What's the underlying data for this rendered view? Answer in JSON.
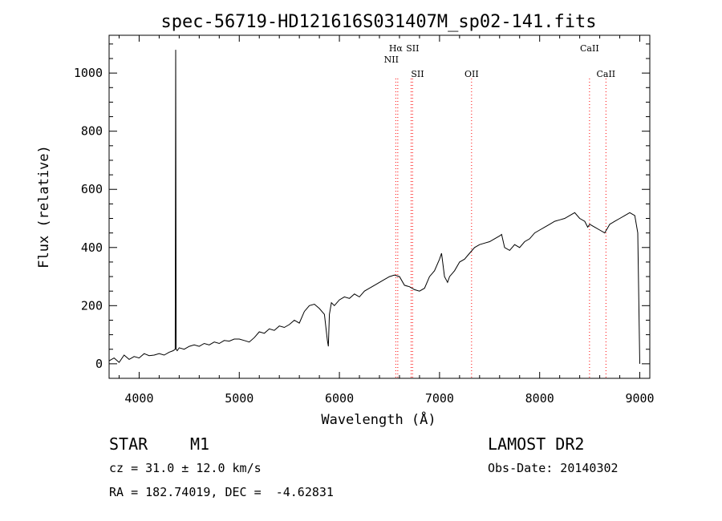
{
  "chart_data": {
    "type": "line",
    "title": "spec-56719-HD121616S031407M_sp02-141.fits",
    "xlabel": "Wavelength (Å)",
    "ylabel": "Flux (relative)",
    "xlim": [
      3700,
      9100
    ],
    "ylim": [
      -50,
      1130
    ],
    "xticks": [
      4000,
      5000,
      6000,
      7000,
      8000,
      9000
    ],
    "yticks": [
      0,
      200,
      400,
      600,
      800,
      1000
    ],
    "grid": false,
    "line_color": "#000000",
    "marker_color": "#ff0000",
    "series": [
      {
        "x": [
          3700,
          3750,
          3800,
          3850,
          3900,
          3950,
          4000,
          4050,
          4100,
          4150,
          4200,
          4250,
          4300,
          4340,
          4360,
          4365,
          4370,
          4380,
          4400,
          4450,
          4500,
          4550,
          4600,
          4650,
          4700,
          4750,
          4800,
          4850,
          4900,
          4950,
          5000,
          5050,
          5100,
          5150,
          5200,
          5250,
          5300,
          5350,
          5400,
          5450,
          5500,
          5550,
          5600,
          5650,
          5700,
          5750,
          5800,
          5850,
          5880,
          5890,
          5900,
          5920,
          5950,
          6000,
          6050,
          6100,
          6150,
          6200,
          6250,
          6300,
          6350,
          6400,
          6450,
          6500,
          6550,
          6600,
          6650,
          6700,
          6750,
          6800,
          6850,
          6900,
          6950,
          7000,
          7020,
          7050,
          7080,
          7100,
          7150,
          7200,
          7250,
          7300,
          7350,
          7400,
          7450,
          7500,
          7550,
          7600,
          7620,
          7650,
          7700,
          7750,
          7800,
          7850,
          7900,
          7950,
          8000,
          8050,
          8100,
          8150,
          8200,
          8250,
          8300,
          8350,
          8400,
          8450,
          8480,
          8500,
          8550,
          8600,
          8650,
          8700,
          8750,
          8800,
          8850,
          8900,
          8950,
          8980,
          9000
        ],
        "y": [
          10,
          20,
          5,
          30,
          15,
          25,
          20,
          35,
          28,
          30,
          35,
          30,
          40,
          45,
          50,
          1080,
          50,
          45,
          55,
          50,
          60,
          65,
          60,
          70,
          65,
          75,
          70,
          80,
          78,
          85,
          85,
          80,
          75,
          90,
          110,
          105,
          120,
          115,
          130,
          125,
          135,
          150,
          140,
          180,
          200,
          205,
          190,
          170,
          80,
          60,
          170,
          210,
          200,
          220,
          230,
          225,
          240,
          230,
          250,
          260,
          270,
          280,
          290,
          300,
          305,
          300,
          270,
          265,
          255,
          250,
          260,
          300,
          320,
          360,
          380,
          300,
          280,
          300,
          320,
          350,
          360,
          380,
          400,
          410,
          415,
          420,
          430,
          440,
          445,
          400,
          390,
          410,
          400,
          420,
          430,
          450,
          460,
          470,
          480,
          490,
          495,
          500,
          510,
          520,
          500,
          490,
          470,
          480,
          470,
          460,
          450,
          480,
          490,
          500,
          510,
          520,
          510,
          450,
          0
        ]
      }
    ],
    "annotations": [
      {
        "label": "Hα",
        "x": 6563
      },
      {
        "label": "NII",
        "x": 6583
      },
      {
        "label": "SII",
        "x": 6716
      },
      {
        "label": "SII",
        "x": 6731
      },
      {
        "label": "OII",
        "x": 7320
      },
      {
        "label": "CaII",
        "x": 8498
      },
      {
        "label": "CaII",
        "x": 8662
      }
    ]
  },
  "info": {
    "object_type": "STAR",
    "subclass": "M1",
    "survey": "LAMOST DR2",
    "redshift_line": "cz = 31.0 ± 12.0 km/s",
    "obs_date": "Obs-Date: 20140302",
    "coords": "RA = 182.74019, DEC =  -4.62831"
  }
}
